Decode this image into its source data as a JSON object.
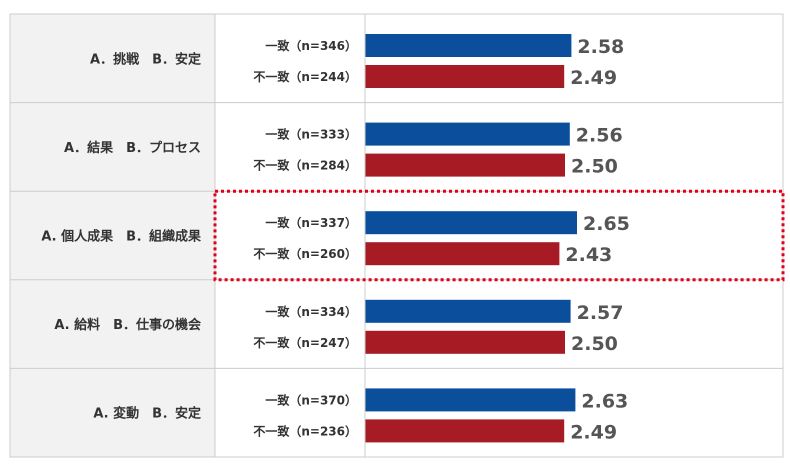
{
  "chart_data": {
    "type": "bar",
    "orientation": "horizontal",
    "colors": {
      "match": "#0b4f9c",
      "mismatch": "#a61b24",
      "label_bg": "#f2f2f2",
      "grid": "#cccccc",
      "highlight": "#e0001a"
    },
    "xlim": [
      0,
      3.8
    ],
    "highlight_group": 2,
    "groups": [
      {
        "label": "A．挑戦　B．安定",
        "bars": [
          {
            "label": "一致（n=346）",
            "value": 2.58,
            "value_label": "2.58",
            "series": "match"
          },
          {
            "label": "不一致（n=244）",
            "value": 2.49,
            "value_label": "2.49",
            "series": "mismatch"
          }
        ]
      },
      {
        "label": "A．結果　B．プロセス",
        "bars": [
          {
            "label": "一致（n=333）",
            "value": 2.56,
            "value_label": "2.56",
            "series": "match"
          },
          {
            "label": "不一致（n=284）",
            "value": 2.5,
            "value_label": "2.50",
            "series": "mismatch"
          }
        ]
      },
      {
        "label": "A. 個人成果　B．組織成果",
        "bars": [
          {
            "label": "一致（n=337）",
            "value": 2.65,
            "value_label": "2.65",
            "series": "match"
          },
          {
            "label": "不一致（n=260）",
            "value": 2.43,
            "value_label": "2.43",
            "series": "mismatch"
          }
        ]
      },
      {
        "label": "A. 給料　B．仕事の機会",
        "bars": [
          {
            "label": "一致（n=334）",
            "value": 2.57,
            "value_label": "2.57",
            "series": "match"
          },
          {
            "label": "不一致（n=247）",
            "value": 2.5,
            "value_label": "2.50",
            "series": "mismatch"
          }
        ]
      },
      {
        "label": "A. 変動　B．安定",
        "bars": [
          {
            "label": "一致（n=370）",
            "value": 2.63,
            "value_label": "2.63",
            "series": "match"
          },
          {
            "label": "不一致（n=236）",
            "value": 2.49,
            "value_label": "2.49",
            "series": "mismatch"
          }
        ]
      }
    ]
  }
}
